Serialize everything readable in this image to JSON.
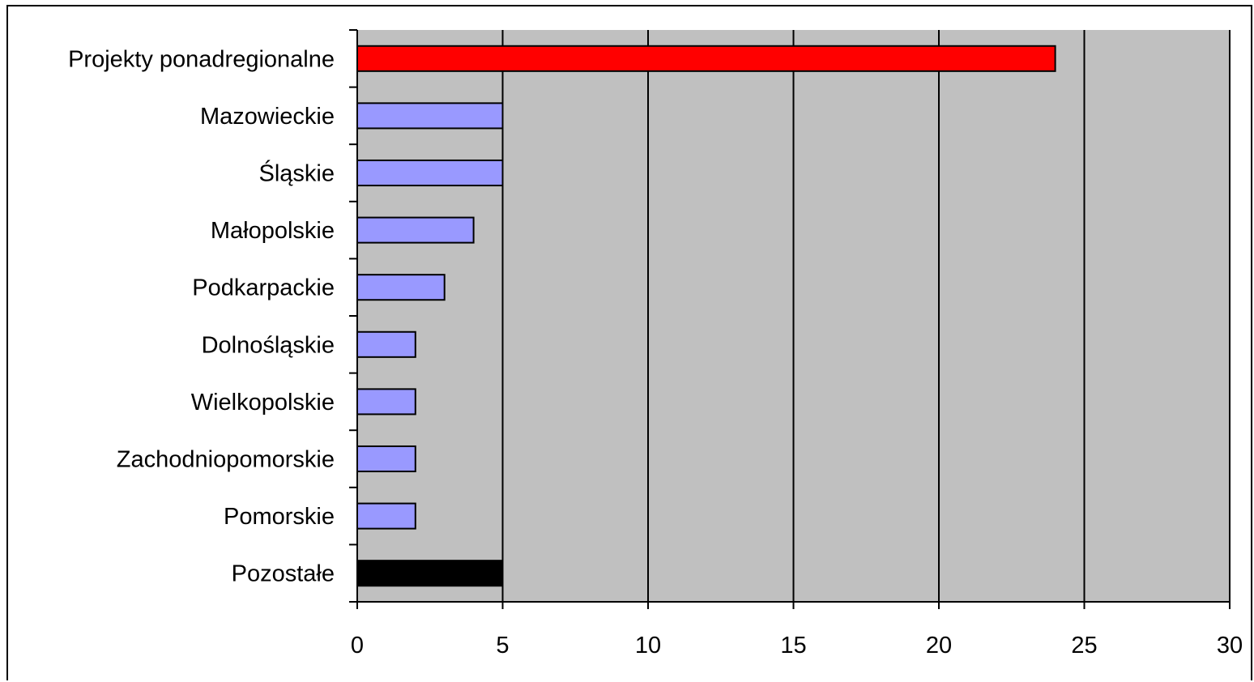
{
  "chart_data": {
    "type": "bar",
    "orientation": "horizontal",
    "categories": [
      "Projekty ponadregionalne",
      "Mazowieckie",
      "Śląskie",
      "Małopolskie",
      "Podkarpackie",
      "Dolnośląskie",
      "Wielkopolskie",
      "Zachodniopomorskie",
      "Pomorskie",
      "Pozostałe"
    ],
    "values": [
      24,
      5,
      5,
      4,
      3,
      2,
      2,
      2,
      2,
      5
    ],
    "bar_colors": [
      "#ff0000",
      "#9999ff",
      "#9999ff",
      "#9999ff",
      "#9999ff",
      "#9999ff",
      "#9999ff",
      "#9999ff",
      "#9999ff",
      "#000000"
    ],
    "title": "",
    "xlabel": "",
    "ylabel": "",
    "xlim": [
      0,
      30
    ],
    "xticks": [
      0,
      5,
      10,
      15,
      20,
      25,
      30
    ],
    "grid": "vertical",
    "plot_background": "#c0c0c0",
    "legend": "none"
  }
}
